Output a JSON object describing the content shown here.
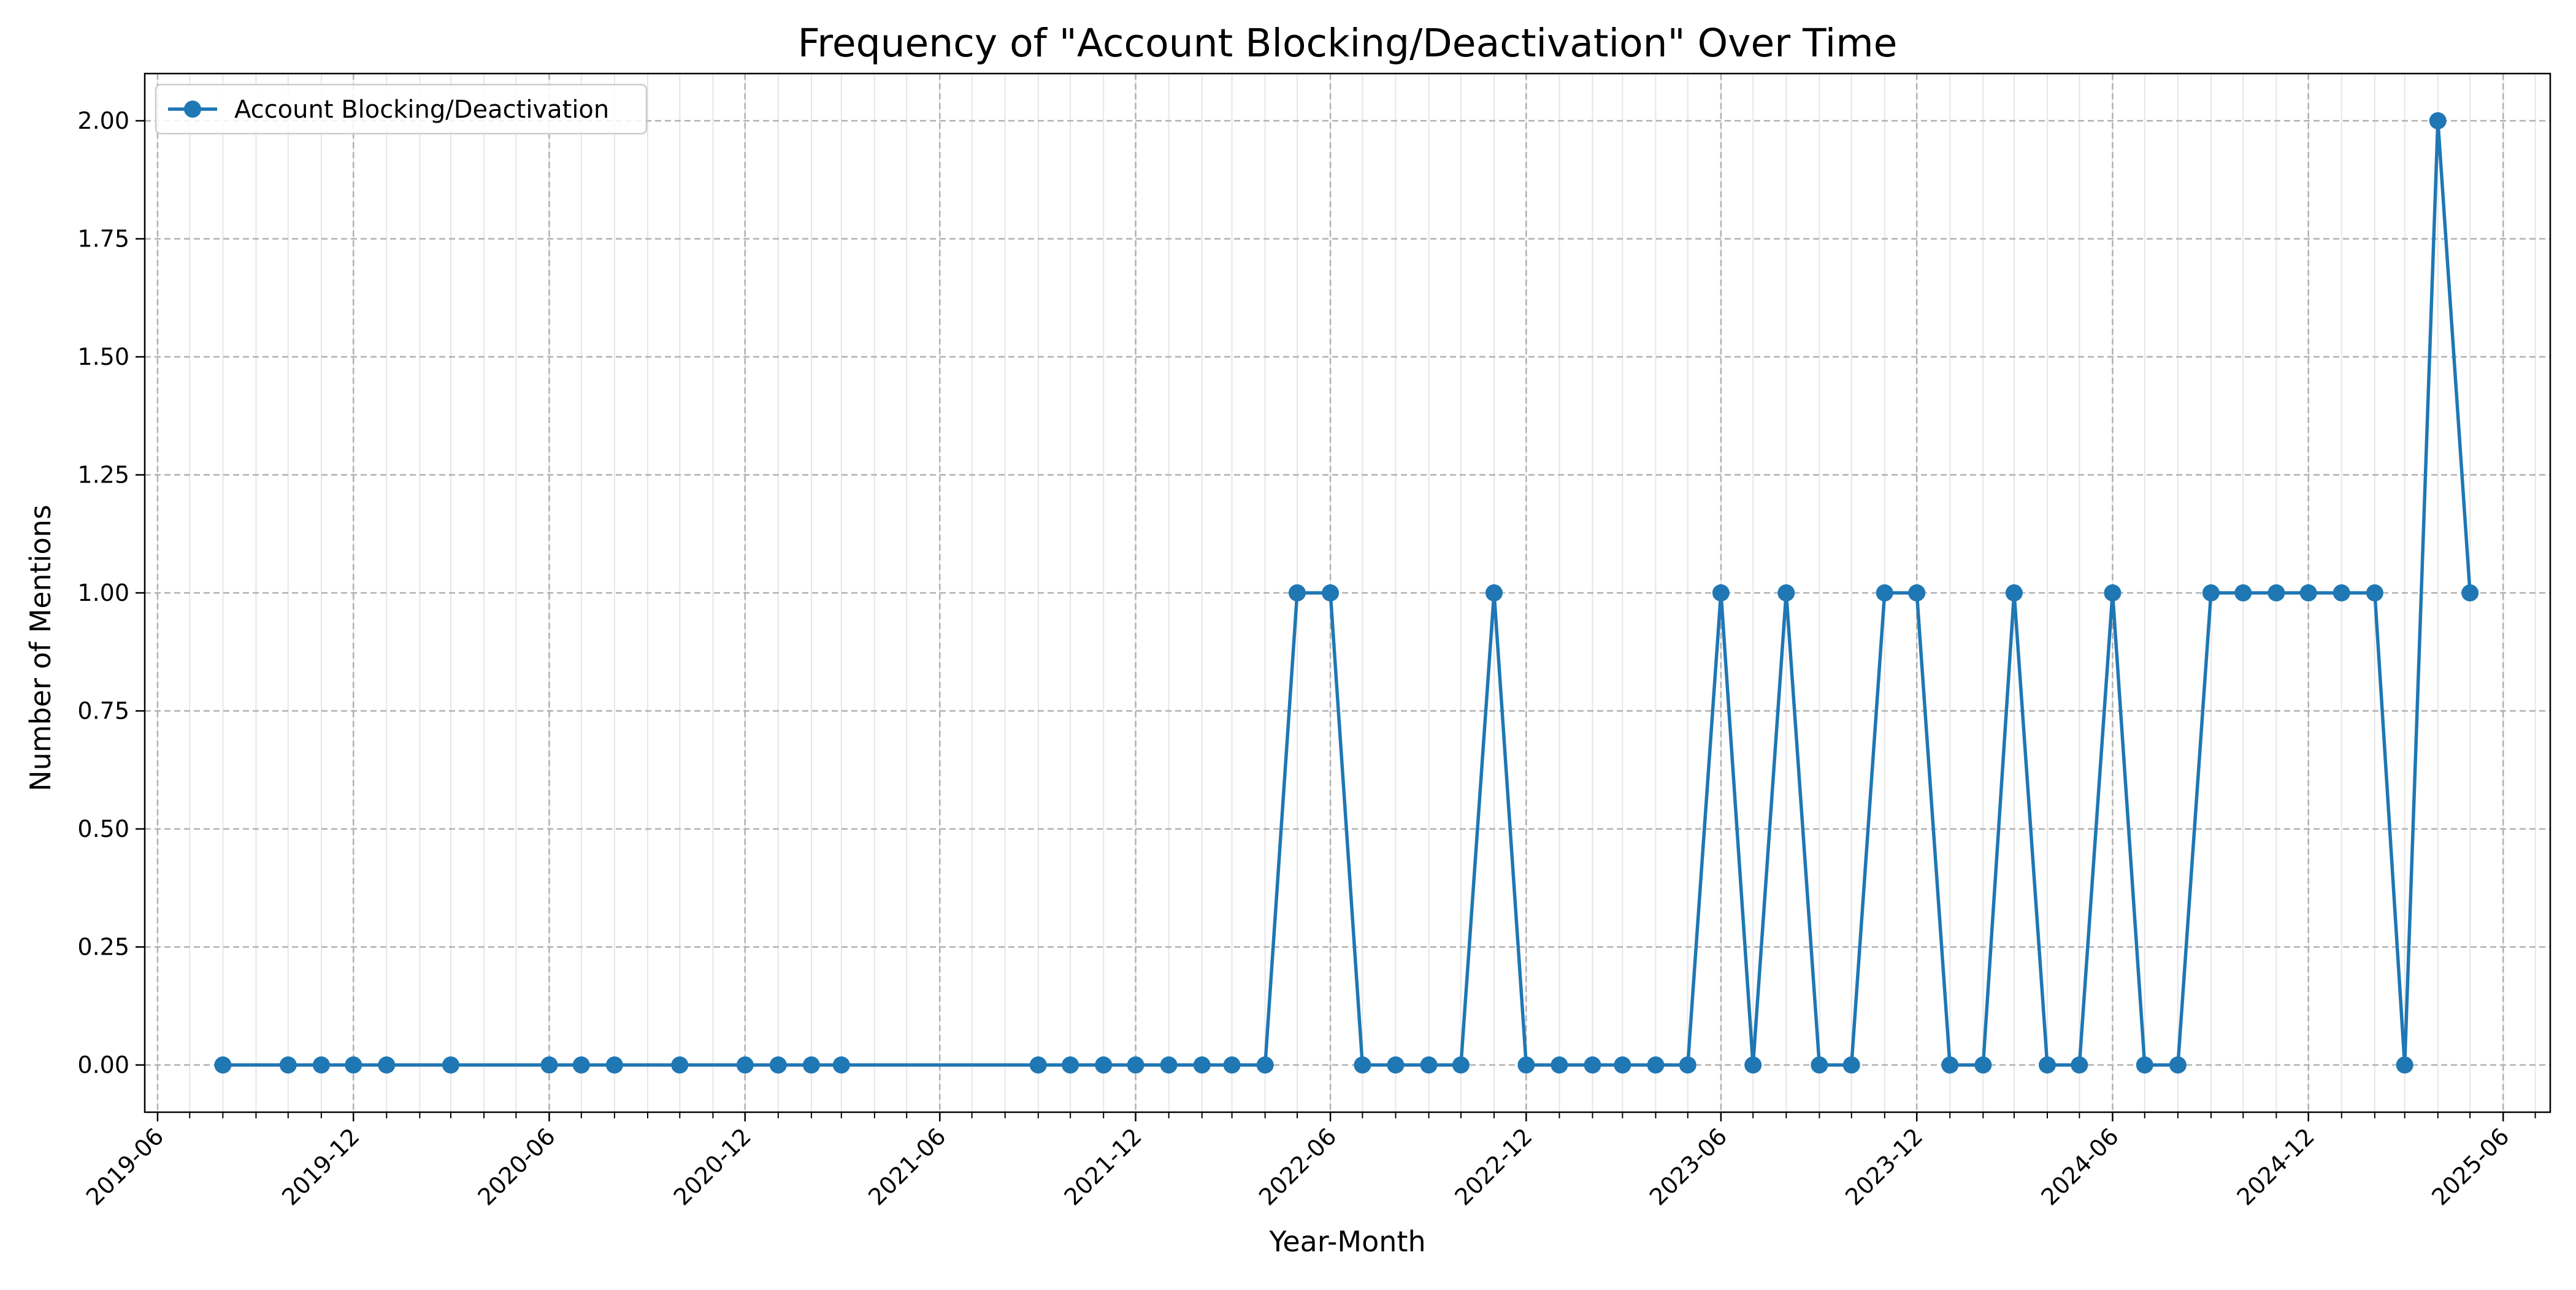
{
  "chart_data": {
    "type": "line",
    "title": "Frequency of \"Account Blocking/Deactivation\" Over Time",
    "xlabel": "Year-Month",
    "ylabel": "Number of Mentions",
    "x_range": [
      "2019-05-20",
      "2025-07-15"
    ],
    "ylim": [
      -0.1,
      2.1
    ],
    "x_major_ticks": [
      "2019-06",
      "2019-12",
      "2020-06",
      "2020-12",
      "2021-06",
      "2021-12",
      "2022-06",
      "2022-12",
      "2023-06",
      "2023-12",
      "2024-06",
      "2024-12",
      "2025-06"
    ],
    "x_minor_ticks": "monthly",
    "y_ticks": [
      "0.00",
      "0.25",
      "0.50",
      "0.75",
      "1.00",
      "1.25",
      "1.50",
      "1.75",
      "2.00"
    ],
    "grid": true,
    "legend": {
      "position": "top-left"
    },
    "colors": {
      "series": "#1f77b4",
      "grid_major": "#b0b0b0",
      "grid_minor": "#e6e6e6"
    },
    "series": [
      {
        "name": "Account Blocking/Deactivation",
        "x": [
          "2019-08",
          "2019-10",
          "2019-11",
          "2019-12",
          "2020-01",
          "2020-03",
          "2020-06",
          "2020-07",
          "2020-08",
          "2020-10",
          "2020-12",
          "2021-01",
          "2021-02",
          "2021-03",
          "2021-09",
          "2021-10",
          "2021-11",
          "2021-12",
          "2022-01",
          "2022-02",
          "2022-03",
          "2022-04",
          "2022-05",
          "2022-06",
          "2022-07",
          "2022-08",
          "2022-09",
          "2022-10",
          "2022-11",
          "2022-12",
          "2023-01",
          "2023-02",
          "2023-03",
          "2023-04",
          "2023-05",
          "2023-06",
          "2023-07",
          "2023-08",
          "2023-09",
          "2023-10",
          "2023-11",
          "2023-12",
          "2024-01",
          "2024-02",
          "2024-03",
          "2024-04",
          "2024-05",
          "2024-06",
          "2024-07",
          "2024-08",
          "2024-09",
          "2024-10",
          "2024-11",
          "2024-12",
          "2025-01",
          "2025-02",
          "2025-03",
          "2025-04",
          "2025-05"
        ],
        "values": [
          0,
          0,
          0,
          0,
          0,
          0,
          0,
          0,
          0,
          0,
          0,
          0,
          0,
          0,
          0,
          0,
          0,
          0,
          0,
          0,
          0,
          0,
          1,
          1,
          0,
          0,
          0,
          0,
          1,
          0,
          0,
          0,
          0,
          0,
          0,
          1,
          0,
          1,
          0,
          0,
          1,
          1,
          0,
          0,
          1,
          0,
          0,
          1,
          0,
          0,
          1,
          1,
          1,
          1,
          1,
          1,
          0,
          2,
          1
        ]
      }
    ]
  }
}
